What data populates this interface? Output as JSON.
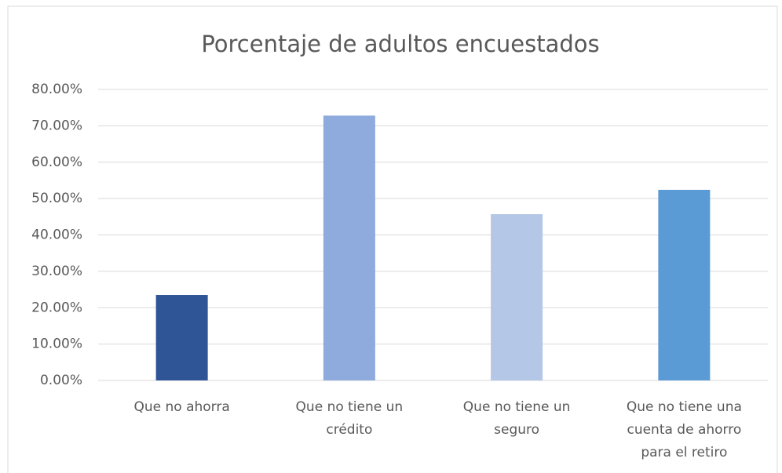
{
  "chart_data": {
    "type": "bar",
    "title": "Porcentaje de adultos encuestados",
    "categories": [
      "Que no ahorra",
      "Que no tiene un crédito",
      "Que no tiene un seguro",
      "Que no tiene una cuenta de ahorro para el retiro"
    ],
    "values": [
      23.5,
      72.8,
      45.7,
      52.4
    ],
    "colors": [
      "#2f5597",
      "#8faadc",
      "#b4c7e7",
      "#5b9bd5"
    ],
    "ylim": [
      0,
      80
    ],
    "yticks": [
      {
        "value": 0,
        "label": "0.00%"
      },
      {
        "value": 10,
        "label": "10.00%"
      },
      {
        "value": 20,
        "label": "20.00%"
      },
      {
        "value": 30,
        "label": "30.00%"
      },
      {
        "value": 40,
        "label": "40.00%"
      },
      {
        "value": 50,
        "label": "50.00%"
      },
      {
        "value": 60,
        "label": "60.00%"
      },
      {
        "value": 70,
        "label": "70.00%"
      },
      {
        "value": 80,
        "label": "80.00%"
      }
    ],
    "grid": true
  }
}
